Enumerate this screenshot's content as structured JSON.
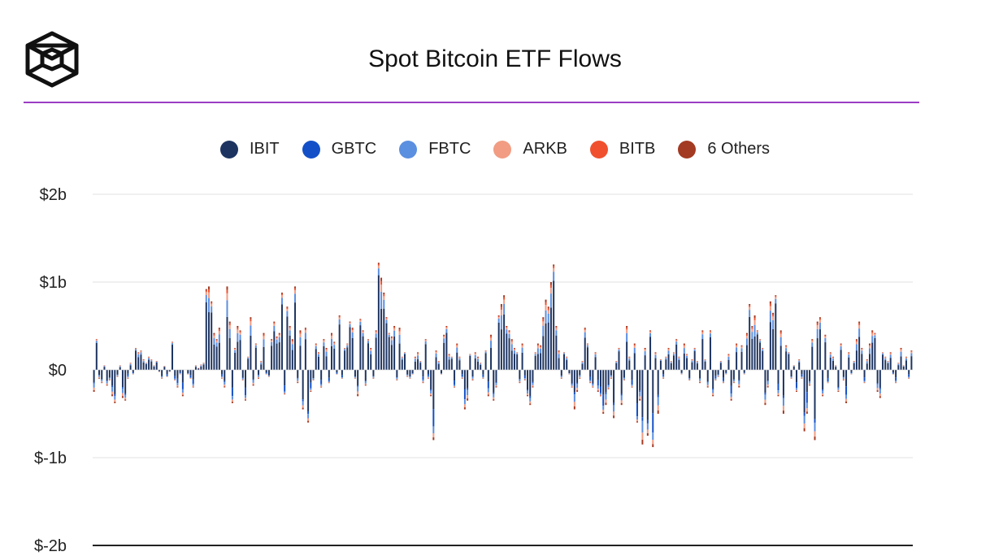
{
  "page": {
    "title": "Spot Bitcoin ETF Flows"
  },
  "colors": {
    "accent_rule": "#9b3dc4",
    "IBIT": "#1d3461",
    "GBTC": "#1350c8",
    "FBTC": "#5b8fe0",
    "ARKB": "#f19c83",
    "BITB": "#f0502e",
    "Others": "#a33a22"
  },
  "logo": {
    "icon": "cube-logo-icon"
  },
  "chart_data": {
    "type": "bar",
    "stacked": true,
    "title": "Spot Bitcoin ETF Flows",
    "xlabel": "",
    "ylabel": "",
    "ylim": [
      -2,
      2
    ],
    "unit": "billion USD",
    "yticks": [
      {
        "value": 2,
        "label": "$2b"
      },
      {
        "value": 1,
        "label": "$1b"
      },
      {
        "value": 0,
        "label": "$0"
      },
      {
        "value": -1,
        "label": "$-1b"
      },
      {
        "value": -2,
        "label": "$-2b"
      }
    ],
    "legend": [
      "IBIT",
      "GBTC",
      "FBTC",
      "ARKB",
      "BITB",
      "6 Others"
    ],
    "legend_position": "top-center",
    "grid": true,
    "series_keys": [
      "IBIT",
      "GBTC",
      "FBTC",
      "ARKB",
      "BITB",
      "Others"
    ],
    "net_flows": [
      -0.25,
      0.35,
      -0.1,
      -0.15,
      0.05,
      -0.18,
      -0.12,
      -0.3,
      -0.38,
      -0.08,
      0.05,
      -0.32,
      -0.35,
      -0.1,
      0.08,
      -0.05,
      0.25,
      0.2,
      0.22,
      0.12,
      0.08,
      0.15,
      0.12,
      0.05,
      0.1,
      -0.02,
      -0.1,
      0.04,
      -0.08,
      -0.02,
      0.32,
      -0.12,
      -0.2,
      -0.05,
      -0.3,
      0.0,
      -0.05,
      -0.1,
      -0.2,
      0.05,
      0.02,
      0.06,
      0.08,
      0.92,
      0.95,
      0.78,
      0.42,
      0.35,
      0.48,
      -0.1,
      -0.2,
      0.95,
      0.55,
      -0.38,
      0.25,
      0.5,
      0.45,
      -0.12,
      -0.35,
      0.15,
      0.6,
      -0.18,
      0.3,
      -0.1,
      0.1,
      0.42,
      -0.05,
      -0.08,
      0.35,
      0.55,
      0.38,
      0.42,
      0.88,
      -0.28,
      0.72,
      0.5,
      0.35,
      0.95,
      -0.15,
      0.45,
      -0.45,
      0.48,
      -0.6,
      -0.25,
      -0.12,
      0.3,
      0.2,
      -0.2,
      0.35,
      0.25,
      -0.15,
      0.42,
      0.32,
      -0.05,
      0.62,
      -0.1,
      0.25,
      0.3,
      0.55,
      0.48,
      -0.1,
      -0.3,
      0.58,
      0.45,
      -0.18,
      0.35,
      0.25,
      -0.1,
      0.45,
      1.22,
      1.05,
      0.88,
      0.6,
      0.42,
      0.38,
      0.5,
      -0.12,
      0.48,
      0.15,
      0.2,
      -0.08,
      -0.1,
      -0.05,
      0.15,
      0.2,
      0.1,
      -0.15,
      0.35,
      -0.1,
      -0.3,
      -0.8,
      0.22,
      0.1,
      -0.05,
      0.4,
      0.5,
      0.18,
      0.15,
      -0.2,
      0.3,
      0.15,
      -0.1,
      -0.45,
      -0.35,
      0.18,
      -0.12,
      0.2,
      0.15,
      0.08,
      -0.1,
      0.22,
      -0.3,
      0.4,
      -0.35,
      -0.2,
      0.62,
      0.75,
      0.85,
      0.5,
      0.45,
      0.35,
      0.25,
      0.2,
      -0.15,
      0.3,
      -0.12,
      -0.3,
      -0.4,
      -0.2,
      0.2,
      0.3,
      0.28,
      0.6,
      0.8,
      0.72,
      1.0,
      1.2,
      0.5,
      0.22,
      -0.1,
      0.2,
      0.15,
      -0.05,
      -0.2,
      -0.45,
      -0.25,
      -0.1,
      0.1,
      0.48,
      0.3,
      -0.15,
      -0.2,
      0.2,
      -0.25,
      -0.3,
      -0.5,
      -0.4,
      -0.22,
      -0.1,
      -0.55,
      0.1,
      0.25,
      -0.4,
      -0.12,
      0.5,
      0.15,
      -0.2,
      0.3,
      -0.6,
      -0.35,
      -0.85,
      0.25,
      -0.75,
      0.45,
      -0.88,
      0.2,
      -0.5,
      0.12,
      -0.1,
      0.15,
      0.25,
      0.1,
      0.2,
      0.35,
      0.15,
      -0.05,
      0.3,
      0.18,
      -0.12,
      0.12,
      0.25,
      0.1,
      -0.15,
      0.45,
      0.12,
      -0.2,
      0.45,
      -0.3,
      -0.12,
      -0.08,
      0.1,
      -0.15,
      -0.05,
      0.18,
      -0.35,
      -0.15,
      0.3,
      -0.2,
      0.28,
      -0.05,
      0.42,
      0.75,
      0.5,
      0.62,
      0.45,
      0.35,
      0.25,
      -0.4,
      -0.2,
      0.78,
      0.65,
      0.85,
      -0.3,
      0.45,
      -0.5,
      0.28,
      0.2,
      -0.1,
      0.05,
      -0.25,
      0.12,
      -0.1,
      -0.7,
      -0.5,
      -0.18,
      0.35,
      -0.8,
      0.55,
      0.6,
      -0.3,
      0.4,
      -0.15,
      0.2,
      0.15,
      0.05,
      -0.25,
      0.3,
      -0.12,
      -0.38,
      0.2,
      -0.05,
      0.1,
      0.35,
      0.55,
      0.25,
      -0.15,
      0.12,
      0.3,
      0.45,
      0.42,
      -0.25,
      -0.32,
      0.2,
      0.15,
      0.1,
      0.2,
      -0.05,
      -0.15,
      0.08,
      0.25,
      0.05,
      0.15,
      -0.1,
      0.22
    ]
  }
}
